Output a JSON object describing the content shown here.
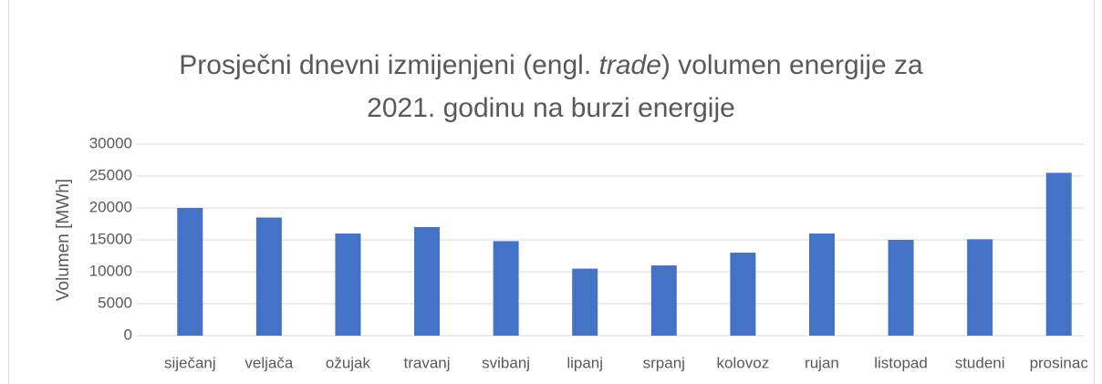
{
  "chart_data": {
    "type": "bar",
    "title": [
      "Prosječni dnevni izmijenjeni (engl. ",
      "trade",
      ") volumen energije za",
      "2021. godinu na burzi energije"
    ],
    "y_label": "Volumen [MWh]",
    "categories": [
      "siječanj",
      "veljača",
      "ožujak",
      "travanj",
      "svibanj",
      "lipanj",
      "srpanj",
      "kolovoz",
      "rujan",
      "listopad",
      "studeni",
      "prosinac"
    ],
    "values": [
      20000,
      18500,
      16000,
      17000,
      14800,
      10500,
      11000,
      13000,
      16000,
      15000,
      15100,
      25500
    ],
    "color": "#4472c4",
    "ylim": [
      0,
      30000
    ],
    "yticks": [
      0,
      5000,
      10000,
      15000,
      20000,
      25000,
      30000
    ],
    "grid": true
  }
}
